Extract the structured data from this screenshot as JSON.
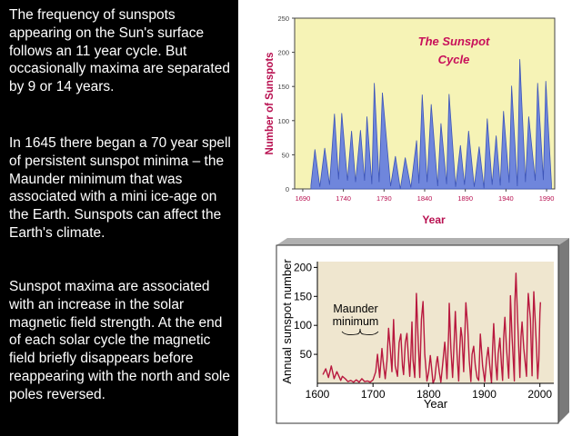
{
  "text": {
    "p1": "The frequency of sunspots appearing on the Sun's surface follows an 11 year cycle. But occasionally maxima are separated by 9 or 14 years.",
    "p2": "In 1645 there began a 70 year spell of persistent sunspot minima – the Maunder minimum that was associated with a mini ice-age on the Earth. Sunspots can affect the Earth's climate.",
    "p3": "Sunspot maxima are associated with an increase in the solar magnetic field strength. At the end of each solar cycle the magnetic field briefly disappears before reappearing with the north and sole poles reversed."
  },
  "colors": {
    "panel_bg": "#000000",
    "panel_text": "#ffffff",
    "chart1_bg": "#f6f3b6",
    "chart1_fill": "#6f86dc",
    "chart1_title": "#c8105a",
    "chart1_axis_label": "#b81050",
    "chart2_bg": "#efe6cf",
    "chart2_line": "#b8183e",
    "chart2_shadow": "#888888"
  },
  "chart_data": [
    {
      "type": "area",
      "title": "The Sunspot Cycle",
      "xlabel": "Year",
      "ylabel": "Number of Sunspots",
      "xlim": [
        1680,
        2000
      ],
      "ylim": [
        0,
        250
      ],
      "x_ticks": [
        1690,
        1740,
        1790,
        1840,
        1890,
        1940,
        1990
      ],
      "y_ticks": [
        0,
        50,
        100,
        150,
        200,
        250
      ],
      "grid": false,
      "series": [
        {
          "x": [
            1700,
            1705,
            1711,
            1717,
            1723,
            1729,
            1734,
            1738,
            1745,
            1750,
            1755,
            1761,
            1766,
            1769,
            1775,
            1778,
            1784,
            1788,
            1798,
            1804,
            1810,
            1816,
            1823,
            1830,
            1833,
            1837,
            1843,
            1848,
            1856,
            1860,
            1867,
            1870,
            1878,
            1884,
            1889,
            1894,
            1901,
            1907,
            1913,
            1917,
            1923,
            1928,
            1933,
            1937,
            1944,
            1947,
            1954,
            1957,
            1964,
            1968,
            1976,
            1979,
            1986,
            1989,
            1996
          ],
          "y": [
            5,
            58,
            3,
            60,
            6,
            110,
            14,
            111,
            12,
            85,
            10,
            86,
            12,
            106,
            7,
            155,
            10,
            141,
            4,
            48,
            0,
            46,
            2,
            71,
            8,
            138,
            10,
            124,
            4,
            96,
            7,
            139,
            3,
            64,
            6,
            85,
            3,
            62,
            1,
            103,
            6,
            78,
            5,
            114,
            9,
            151,
            4,
            190,
            10,
            106,
            12,
            155,
            13,
            158,
            8
          ]
        }
      ]
    },
    {
      "type": "line",
      "title": "",
      "xlabel": "Year",
      "ylabel": "Annual sunspot number",
      "xlim": [
        1600,
        2025
      ],
      "ylim": [
        0,
        210
      ],
      "x_ticks": [
        1600,
        1700,
        1800,
        1900,
        2000
      ],
      "y_ticks": [
        50,
        100,
        150,
        200
      ],
      "grid": false,
      "annotation": {
        "text_line1": "Maunder",
        "text_line2": "minimum"
      },
      "series": [
        {
          "name": "",
          "x": [
            1610,
            1615,
            1620,
            1625,
            1630,
            1635,
            1638,
            1642,
            1645,
            1650,
            1655,
            1660,
            1665,
            1670,
            1675,
            1680,
            1685,
            1690,
            1695,
            1700,
            1705,
            1708,
            1712,
            1716,
            1718,
            1722,
            1725,
            1728,
            1731,
            1734,
            1737,
            1740,
            1744,
            1747,
            1750,
            1753,
            1755,
            1758,
            1761,
            1764,
            1766,
            1768,
            1770,
            1772,
            1775,
            1778,
            1781,
            1784,
            1787,
            1790,
            1793,
            1797,
            1800,
            1803,
            1805,
            1808,
            1811,
            1814,
            1816,
            1819,
            1822,
            1825,
            1829,
            1830,
            1833,
            1836,
            1837,
            1840,
            1843,
            1846,
            1848,
            1851,
            1854,
            1856,
            1858,
            1860,
            1863,
            1866,
            1867,
            1870,
            1873,
            1876,
            1878,
            1881,
            1884,
            1887,
            1890,
            1893,
            1894,
            1897,
            1901,
            1904,
            1907,
            1910,
            1913,
            1915,
            1917,
            1920,
            1923,
            1925,
            1928,
            1931,
            1933,
            1935,
            1937,
            1940,
            1944,
            1946,
            1947,
            1950,
            1954,
            1955,
            1957,
            1960,
            1964,
            1966,
            1968,
            1971,
            1976,
            1978,
            1979,
            1983,
            1986,
            1988,
            1989,
            1992,
            1994,
            1996,
            1998,
            2000,
            2001
          ],
          "y": [
            15,
            25,
            10,
            30,
            8,
            20,
            14,
            5,
            12,
            8,
            3,
            5,
            2,
            6,
            2,
            8,
            3,
            4,
            2,
            6,
            20,
            50,
            10,
            60,
            40,
            8,
            38,
            95,
            60,
            20,
            110,
            30,
            12,
            70,
            85,
            30,
            15,
            70,
            86,
            40,
            12,
            50,
            106,
            40,
            10,
            155,
            80,
            10,
            110,
            141,
            50,
            4,
            20,
            48,
            30,
            0,
            8,
            35,
            46,
            20,
            2,
            30,
            71,
            60,
            8,
            90,
            138,
            60,
            10,
            75,
            124,
            50,
            4,
            60,
            96,
            80,
            20,
            110,
            139,
            100,
            40,
            3,
            50,
            64,
            30,
            10,
            5,
            85,
            70,
            30,
            3,
            40,
            62,
            30,
            1,
            60,
            103,
            40,
            6,
            50,
            78,
            30,
            5,
            80,
            114,
            60,
            9,
            90,
            151,
            80,
            4,
            140,
            190,
            110,
            10,
            80,
            106,
            60,
            12,
            120,
            155,
            110,
            13,
            120,
            158,
            100,
            60,
            8,
            40,
            120,
            140
          ]
        }
      ]
    }
  ]
}
